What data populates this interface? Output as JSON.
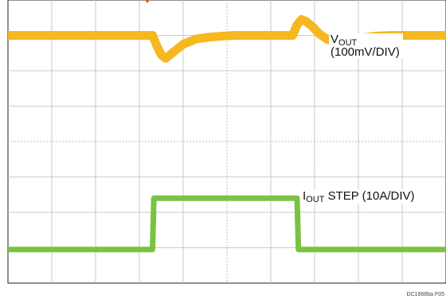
{
  "chart_data": {
    "type": "line",
    "title": "",
    "xlabel": "",
    "ylabel": "",
    "grid": true,
    "grid_divisions": {
      "x": 10,
      "y": 8
    },
    "xlim": [
      0,
      10
    ],
    "ylim": [
      0,
      8
    ],
    "series": [
      {
        "name": "VOUT (100mV/DIV)",
        "label_main": "V",
        "label_sub": "OUT",
        "label_scale": "(100mV/DIV)",
        "color": "#f6b820",
        "x": [
          0,
          3.3,
          3.4,
          3.5,
          3.6,
          3.8,
          4.0,
          4.3,
          4.6,
          4.9,
          5.2,
          5.5,
          6.0,
          6.5,
          6.6,
          6.7,
          6.8,
          6.95,
          7.1,
          7.3,
          7.5,
          7.8,
          8.1,
          8.4,
          8.8,
          10
        ],
        "y": [
          7.0,
          7.0,
          6.7,
          6.45,
          6.35,
          6.55,
          6.75,
          6.9,
          6.95,
          6.98,
          7.0,
          7.0,
          7.0,
          7.0,
          7.3,
          7.45,
          7.4,
          7.25,
          7.05,
          6.88,
          6.82,
          6.86,
          6.93,
          6.98,
          7.0,
          7.0
        ]
      },
      {
        "name": "IOUT STEP (10A/DIV)",
        "label_main": "I",
        "label_sub": "OUT",
        "label_scale": "STEP (10A/DIV)",
        "color": "#7cc242",
        "x": [
          0,
          3.3,
          3.33,
          6.6,
          6.63,
          10
        ],
        "y": [
          0.95,
          0.95,
          2.4,
          2.4,
          0.95,
          0.95
        ]
      }
    ],
    "figure_id": "DC1668ba F05"
  }
}
